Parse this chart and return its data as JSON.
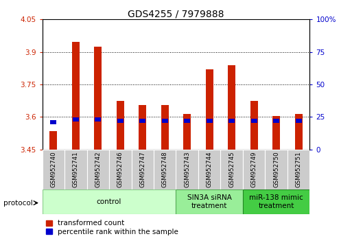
{
  "title": "GDS4255 / 7979888",
  "samples": [
    "GSM952740",
    "GSM952741",
    "GSM952742",
    "GSM952746",
    "GSM952747",
    "GSM952748",
    "GSM952743",
    "GSM952744",
    "GSM952745",
    "GSM952749",
    "GSM952750",
    "GSM952751"
  ],
  "transformed_counts": [
    3.535,
    3.945,
    3.925,
    3.675,
    3.655,
    3.655,
    3.615,
    3.82,
    3.84,
    3.675,
    3.605,
    3.615
  ],
  "percentile_ranks": [
    21,
    23,
    23,
    22,
    22,
    22,
    22,
    22,
    22,
    22,
    22,
    22
  ],
  "bar_base": 3.45,
  "blue_bar_height": 0.018,
  "ylim_left": [
    3.45,
    4.05
  ],
  "ylim_right": [
    0,
    100
  ],
  "yticks_left": [
    3.45,
    3.6,
    3.75,
    3.9,
    4.05
  ],
  "yticks_right": [
    0,
    25,
    50,
    75,
    100
  ],
  "ytick_labels_left": [
    "3.45",
    "3.6",
    "3.75",
    "3.9",
    "4.05"
  ],
  "ytick_labels_right": [
    "0",
    "25",
    "50",
    "75",
    "100%"
  ],
  "red_color": "#cc2200",
  "blue_color": "#0000cc",
  "grid_color": "#000000",
  "groups": [
    {
      "label": "control",
      "start": 0,
      "end": 6,
      "color": "#ccffcc",
      "edge_color": "#88cc88"
    },
    {
      "label": "SIN3A siRNA\ntreatment",
      "start": 6,
      "end": 9,
      "color": "#99ee99",
      "edge_color": "#55aa55"
    },
    {
      "label": "miR-138 mimic\ntreatment",
      "start": 9,
      "end": 12,
      "color": "#44cc44",
      "edge_color": "#228822"
    }
  ],
  "protocol_label": "protocol",
  "legend_red": "transformed count",
  "legend_blue": "percentile rank within the sample",
  "bar_width": 0.35,
  "tick_label_color_left": "#cc2200",
  "tick_label_color_right": "#0000cc",
  "sample_label_bg": "#cccccc",
  "title_fontsize": 10,
  "axis_fontsize": 7.5,
  "legend_fontsize": 7.5,
  "group_label_fontsize": 7.5
}
